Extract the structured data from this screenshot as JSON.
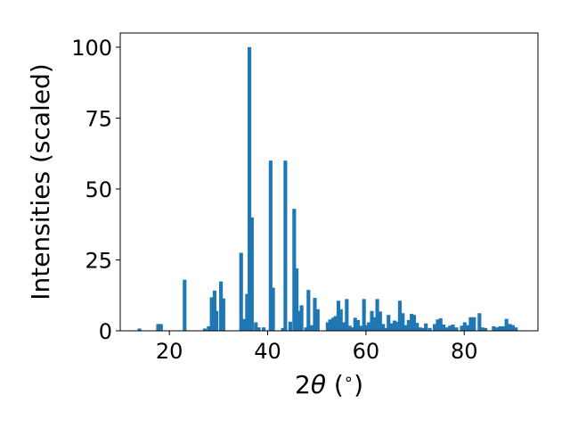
{
  "chart_data": {
    "type": "bar",
    "title": "",
    "xlabel": "2θ (°)",
    "xlabel_parts": {
      "symbol_prefix": "2",
      "symbol": "θ",
      "unit_open": " (",
      "unit": "∘",
      "unit_close": ")"
    },
    "ylabel": "Intensities (scaled)",
    "xlim": [
      10,
      95
    ],
    "ylim": [
      0,
      105
    ],
    "xticks": [
      20,
      40,
      60,
      80
    ],
    "yticks": [
      0,
      25,
      50,
      75,
      100
    ],
    "grid": false,
    "bar_color": "#1f77b4",
    "bar_width": 0.75,
    "x": [
      13.9,
      17.7,
      18.3,
      23.1,
      27.2,
      28.0,
      28.6,
      29.2,
      29.6,
      30.5,
      31.0,
      34.6,
      35.1,
      35.8,
      36.3,
      36.8,
      37.6,
      38.2,
      39.2,
      40.6,
      41.1,
      43.1,
      43.6,
      44.6,
      45.4,
      45.9,
      46.4,
      46.9,
      47.8,
      48.3,
      48.9,
      49.6,
      50.2,
      52.2,
      52.7,
      53.3,
      53.8,
      54.4,
      54.9,
      55.5,
      56.1,
      56.7,
      57.2,
      57.8,
      58.4,
      58.9,
      59.6,
      60.1,
      60.6,
      61.2,
      61.7,
      62.3,
      62.9,
      63.5,
      64.1,
      64.6,
      65.2,
      65.8,
      66.3,
      66.9,
      67.5,
      68.1,
      68.7,
      69.3,
      69.8,
      70.4,
      71.0,
      71.6,
      72.2,
      73.0,
      74.0,
      74.6,
      75.2,
      75.8,
      76.4,
      77.1,
      77.7,
      78.4,
      79.5,
      80.1,
      80.7,
      81.3,
      82.0,
      83.1,
      83.7,
      84.3,
      86.0,
      86.7,
      87.3,
      88.0,
      88.6,
      89.3,
      89.9,
      90.5
    ],
    "values": [
      0.8,
      2.4,
      2.4,
      18.0,
      0.8,
      1.6,
      11.8,
      14.2,
      7.0,
      17.4,
      11.4,
      27.5,
      4.2,
      13.0,
      100,
      40.0,
      3.0,
      1.2,
      1.2,
      60.0,
      15.2,
      1.0,
      60.0,
      3.2,
      43.0,
      22.0,
      7.0,
      9.0,
      1.2,
      14.4,
      2.0,
      11.6,
      7.6,
      3.0,
      4.0,
      4.6,
      5.2,
      10.6,
      7.6,
      3.0,
      11.2,
      1.8,
      1.2,
      4.6,
      3.8,
      1.8,
      11.2,
      2.0,
      3.0,
      7.0,
      4.8,
      11.2,
      6.8,
      2.4,
      1.0,
      5.6,
      2.6,
      3.6,
      3.2,
      10.6,
      6.2,
      2.0,
      3.8,
      6.0,
      5.6,
      2.8,
      1.2,
      1.0,
      2.6,
      1.0,
      2.4,
      4.0,
      4.4,
      2.2,
      1.2,
      1.8,
      2.2,
      1.2,
      1.8,
      3.0,
      2.0,
      4.8,
      4.8,
      6.2,
      1.2,
      1.0,
      1.6,
      1.2,
      1.6,
      1.6,
      4.2,
      2.4,
      2.0,
      1.2
    ]
  }
}
